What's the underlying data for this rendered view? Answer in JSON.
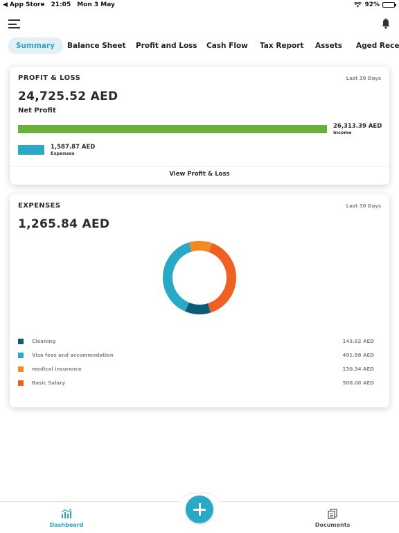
{
  "status_bar": {
    "back_app": "◀ App Store",
    "time": "21:05",
    "date": "Mon 3 May",
    "battery": "92%",
    "battery_level": 0.92
  },
  "tabs": [
    {
      "label": "Summary",
      "active": true
    },
    {
      "label": "Balance Sheet"
    },
    {
      "label": "Profit and Loss"
    },
    {
      "label": "Cash Flow"
    },
    {
      "label": "Tax Report"
    },
    {
      "label": "Assets"
    },
    {
      "label": "Aged Receiv"
    }
  ],
  "profit_loss": {
    "title": "PROFIT & LOSS",
    "period": "Last 30 Days",
    "net_profit_amount": "24,725.52 AED",
    "net_profit_label": "Net Profit",
    "income_amount": "26,313.39 AED",
    "income_label": "Income",
    "income_value": 26313.39,
    "expenses_amount": "1,587.87 AED",
    "expenses_label": "Expenses",
    "expenses_value": 1587.87,
    "view_link": "View Profit & Loss"
  },
  "expenses": {
    "title": "EXPENSES",
    "period": "Last 30 Days",
    "total": "1,265.84 AED",
    "items": [
      {
        "label": "Cleaning",
        "amount": "143.62 AED",
        "value": 143.62,
        "color": "#0d5a7a"
      },
      {
        "label": "Visa fees and accommodation",
        "amount": "491.88 AED",
        "value": 491.88,
        "color": "#29a9c6"
      },
      {
        "label": "medical insurance",
        "amount": "130.34 AED",
        "value": 130.34,
        "color": "#f28a24"
      },
      {
        "label": "Basic Salary",
        "amount": "500.00 AED",
        "value": 500.0,
        "color": "#ee6124"
      }
    ]
  },
  "bottom_nav": {
    "dashboard": "Dashboard",
    "documents": "Documents"
  },
  "colors": {
    "accent": "#29a9c6",
    "income": "#6ab03b",
    "expenses": "#29a9c6"
  }
}
